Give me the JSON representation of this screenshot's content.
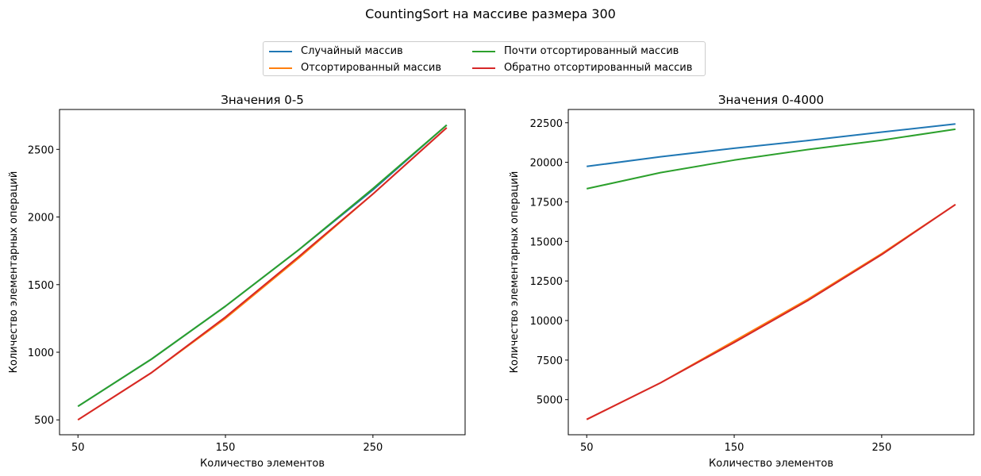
{
  "figure": {
    "suptitle": "CountingSort на массиве размера 300"
  },
  "legend": {
    "items": [
      {
        "label": "Случайный массив",
        "color": "#1f77b4"
      },
      {
        "label": "Отсортированный массив",
        "color": "#ff7f0e"
      },
      {
        "label": "Почти отсортированный массив",
        "color": "#2ca02c"
      },
      {
        "label": "Обратно отсортированный массив",
        "color": "#d62728"
      }
    ]
  },
  "chart_data": [
    {
      "type": "line",
      "title": "Значения 0-5",
      "xlabel": "Количество элементов",
      "ylabel": "Количество элементарных операций",
      "x": [
        50,
        100,
        150,
        200,
        250,
        300
      ],
      "xticks": [
        "50",
        "150",
        "250"
      ],
      "xtick_values": [
        50,
        150,
        250
      ],
      "xlim": [
        37.5,
        312.5
      ],
      "ylim": [
        390,
        2795
      ],
      "yticks": [
        500,
        1000,
        1500,
        2000,
        2500
      ],
      "series": [
        {
          "name": "Случайный массив",
          "color": "#1f77b4",
          "values": [
            600,
            950,
            1340,
            1760,
            2200,
            2680
          ]
        },
        {
          "name": "Отсортированный массив",
          "color": "#ff7f0e",
          "values": [
            500,
            850,
            1250,
            1700,
            2170,
            2660
          ]
        },
        {
          "name": "Почти отсортированный массив",
          "color": "#2ca02c",
          "values": [
            600,
            950,
            1340,
            1760,
            2210,
            2680
          ]
        },
        {
          "name": "Обратно отсортированный массив",
          "color": "#d62728",
          "values": [
            500,
            850,
            1260,
            1710,
            2170,
            2660
          ]
        }
      ]
    },
    {
      "type": "line",
      "title": "Значения 0-4000",
      "xlabel": "Количество элементов",
      "ylabel": "Количество элементарных операций",
      "x": [
        50,
        100,
        150,
        200,
        250,
        300
      ],
      "xticks": [
        "50",
        "150",
        "250"
      ],
      "xtick_values": [
        50,
        150,
        250
      ],
      "xlim": [
        37.5,
        312.5
      ],
      "ylim": [
        2780,
        23340
      ],
      "yticks": [
        5000,
        7500,
        10000,
        12500,
        15000,
        17500,
        20000,
        22500
      ],
      "series": [
        {
          "name": "Случайный массив",
          "color": "#1f77b4",
          "values": [
            19740,
            20350,
            20890,
            21380,
            21910,
            22420
          ]
        },
        {
          "name": "Отсортированный массив",
          "color": "#ff7f0e",
          "values": [
            3750,
            6060,
            8700,
            11350,
            14230,
            17330
          ]
        },
        {
          "name": "Почти отсортированный массив",
          "color": "#2ca02c",
          "values": [
            18330,
            19350,
            20140,
            20810,
            21400,
            22090
          ]
        },
        {
          "name": "Обратно отсортированный массив",
          "color": "#d62728",
          "values": [
            3750,
            6060,
            8610,
            11270,
            14170,
            17330
          ]
        }
      ]
    }
  ]
}
